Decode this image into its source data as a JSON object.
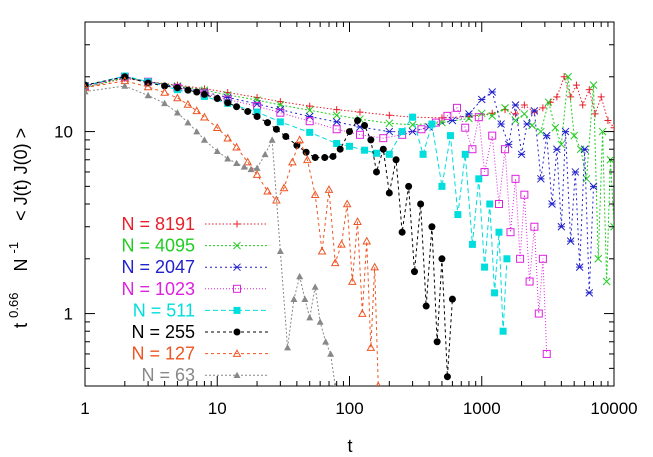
{
  "chart_data": {
    "type": "line",
    "x_scale": "log",
    "y_scale": "log",
    "xlim": [
      1,
      10000
    ],
    "ylim": [
      0.4,
      40
    ],
    "grid": false,
    "legend_placement": "bottom-left",
    "xlabel": "t",
    "ylabel": {
      "base": "t",
      "exponent": "0.66",
      "middle": "N",
      "middle_exponent": "-1",
      "tail": "< J(t) J(0) >"
    },
    "x_ticks": [
      {
        "value": 1,
        "label": "1"
      },
      {
        "value": 10,
        "label": "10"
      },
      {
        "value": 100,
        "label": "100"
      },
      {
        "value": 1000,
        "label": "1000"
      },
      {
        "value": 10000,
        "label": "10000"
      }
    ],
    "y_ticks": [
      {
        "value": 1,
        "label": "1"
      },
      {
        "value": 10,
        "label": "10"
      }
    ],
    "series": [
      {
        "name": "N = 8191",
        "color": "#e8202a",
        "marker": "plus",
        "dash": "1.5,2",
        "x": [
          1,
          2,
          3,
          5,
          8,
          12,
          20,
          30,
          50,
          80,
          120,
          200,
          300,
          500,
          800,
          1200,
          1500,
          1800,
          2100,
          2500,
          2900,
          3300,
          3700,
          4200,
          4700,
          5200,
          5800,
          6500,
          7200,
          8000,
          9000,
          10000
        ],
        "y": [
          17.5,
          19.6,
          18.8,
          18.0,
          17.2,
          16.4,
          15.4,
          14.6,
          13.8,
          13.2,
          12.8,
          12.3,
          12.0,
          11.9,
          12.1,
          12.6,
          13.2,
          12.5,
          14.0,
          12.8,
          13.5,
          14.5,
          15.5,
          20.0,
          15.5,
          18.0,
          14.0,
          17.0,
          12.5,
          15.5,
          11.5,
          10.5
        ]
      },
      {
        "name": "N = 4095",
        "color": "#22cc22",
        "marker": "x",
        "dash": "2,2",
        "x": [
          1,
          2,
          3,
          5,
          8,
          12,
          20,
          30,
          50,
          80,
          120,
          200,
          300,
          500,
          800,
          1000,
          1200,
          1500,
          1800,
          2100,
          2400,
          2800,
          3200,
          3600,
          4000,
          4500,
          5000,
          5600,
          6200,
          7000,
          7600,
          8200,
          8800,
          9400,
          10000
        ],
        "y": [
          17.5,
          19.8,
          18.8,
          17.8,
          16.9,
          15.9,
          14.9,
          14.0,
          13.1,
          12.3,
          11.7,
          11.1,
          10.9,
          11.2,
          11.8,
          12.6,
          12.2,
          13.5,
          11.5,
          12.5,
          10.8,
          10.0,
          14.5,
          10.5,
          8.5,
          20.0,
          9.5,
          8.0,
          5.5,
          18.0,
          2.0,
          10.0,
          1.5,
          7.0,
          3.0
        ]
      },
      {
        "name": "N = 2047",
        "color": "#2222cc",
        "marker": "asterisk",
        "dash": "2,3",
        "x": [
          1,
          2,
          3,
          5,
          8,
          12,
          20,
          30,
          50,
          80,
          120,
          200,
          300,
          400,
          600,
          800,
          1000,
          1200,
          1400,
          1600,
          1800,
          2000,
          2200,
          2500,
          2800,
          3100,
          3400,
          3700,
          4000,
          4300,
          4700,
          5100,
          5500,
          6000,
          6500,
          7000
        ],
        "y": [
          17.8,
          20.0,
          18.8,
          17.6,
          16.5,
          15.4,
          14.2,
          13.2,
          12.1,
          11.3,
          10.6,
          10.0,
          10.0,
          10.6,
          11.5,
          12.5,
          15.0,
          16.5,
          11.0,
          8.5,
          14.0,
          7.5,
          11.0,
          13.0,
          5.5,
          9.5,
          4.0,
          8.0,
          3.0,
          10.0,
          2.5,
          6.0,
          1.8,
          8.0,
          1.3,
          5.0
        ]
      },
      {
        "name": "N = 1023",
        "color": "#dd22dd",
        "marker": "square",
        "dash": "1,2",
        "x": [
          1,
          2,
          3,
          5,
          8,
          12,
          20,
          30,
          50,
          80,
          120,
          180,
          250,
          350,
          450,
          550,
          650,
          750,
          850,
          950,
          1050,
          1200,
          1350,
          1500,
          1650,
          1800,
          1950,
          2100,
          2300,
          2500,
          2700,
          2900,
          3100
        ],
        "y": [
          17.8,
          20.0,
          18.8,
          17.4,
          16.2,
          15.0,
          13.8,
          12.7,
          11.4,
          10.3,
          9.6,
          9.2,
          9.6,
          10.3,
          11.2,
          12.2,
          13.5,
          10.5,
          8.0,
          12.0,
          6.0,
          9.5,
          4.0,
          8.0,
          2.8,
          5.5,
          2.0,
          4.5,
          1.5,
          3.0,
          1.0,
          2.0,
          0.6
        ]
      },
      {
        "name": "N = 511",
        "color": "#00dddd",
        "marker": "filled-square",
        "dash": "5,3",
        "x": [
          1,
          2,
          3,
          5,
          8,
          12,
          20,
          30,
          50,
          80,
          100,
          130,
          160,
          200,
          250,
          300,
          360,
          420,
          500,
          580,
          660,
          750,
          850,
          950,
          1050,
          1150,
          1250,
          1350,
          1450,
          1550
        ],
        "y": [
          17.9,
          20.2,
          18.8,
          17.0,
          15.6,
          14.3,
          12.8,
          11.3,
          9.9,
          8.6,
          8.3,
          7.9,
          7.6,
          7.5,
          10.0,
          12.0,
          7.5,
          11.0,
          5.0,
          9.5,
          3.5,
          7.5,
          2.4,
          5.5,
          1.8,
          4.0,
          1.3,
          2.8,
          0.8,
          2.0
        ]
      },
      {
        "name": "N = 255",
        "color": "#000000",
        "marker": "circle",
        "dash": "3,3",
        "x": [
          1,
          2,
          3,
          4,
          5,
          6,
          7,
          8,
          10,
          12,
          14,
          17,
          20,
          24,
          28,
          33,
          40,
          47,
          55,
          65,
          75,
          85,
          100,
          115,
          130,
          145,
          160,
          180,
          200,
          225,
          250,
          280,
          310,
          345,
          380,
          420,
          460,
          500,
          550,
          600
        ],
        "y": [
          18.0,
          20.0,
          18.5,
          17.8,
          17.4,
          16.9,
          16.5,
          16.0,
          15.2,
          14.4,
          13.7,
          12.9,
          12.1,
          11.2,
          10.3,
          9.4,
          8.4,
          7.7,
          7.2,
          7.2,
          7.3,
          8.0,
          10.0,
          11.5,
          10.8,
          9.0,
          6.0,
          8.0,
          4.6,
          7.0,
          2.8,
          5.0,
          1.7,
          4.0,
          1.1,
          3.0,
          0.7,
          2.0,
          0.45,
          1.2
        ]
      },
      {
        "name": "N = 127",
        "color": "#ee5522",
        "marker": "triangle",
        "dash": "3,3",
        "x": [
          1,
          2,
          3,
          4,
          5,
          6,
          7,
          8,
          10,
          12,
          14,
          17,
          20,
          24,
          28,
          32,
          37,
          42,
          48,
          55,
          62,
          70,
          78,
          87,
          96,
          105,
          115,
          125,
          135,
          145,
          155,
          165
        ],
        "y": [
          17.4,
          19.0,
          17.6,
          16.4,
          15.3,
          14.1,
          13.0,
          12.0,
          10.5,
          9.2,
          8.2,
          6.8,
          5.8,
          4.7,
          4.2,
          4.9,
          6.8,
          9.0,
          7.0,
          4.5,
          2.2,
          4.8,
          1.9,
          2.4,
          4.0,
          1.5,
          3.2,
          1.0,
          2.5,
          0.65,
          1.8,
          0.4
        ]
      },
      {
        "name": "N = 63",
        "color": "#888888",
        "marker": "filled-triangle",
        "dash": "2,2",
        "x": [
          1,
          2,
          3,
          4,
          5,
          6,
          7,
          8,
          10,
          12,
          14,
          16,
          18,
          20,
          23,
          26,
          30,
          34,
          38,
          42,
          46,
          50,
          55,
          60,
          66,
          72,
          78,
          84
        ],
        "y": [
          16.6,
          17.8,
          15.8,
          14.3,
          12.7,
          11.2,
          10.0,
          9.0,
          7.8,
          7.1,
          6.7,
          6.4,
          6.2,
          6.3,
          7.5,
          9.0,
          2.2,
          0.65,
          1.2,
          1.6,
          1.2,
          0.95,
          1.4,
          0.9,
          0.7,
          0.6,
          0.4,
          0.35
        ]
      }
    ]
  }
}
